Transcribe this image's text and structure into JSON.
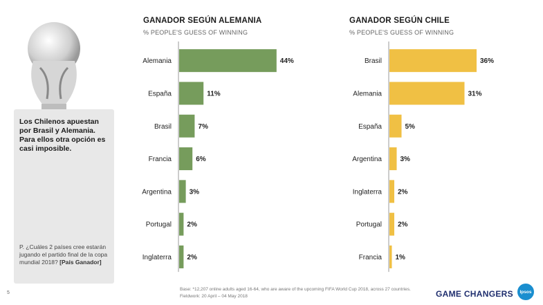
{
  "sidebar": {
    "headline": "Los Chilenos apuestan por Brasil y Alemania.  Para ellos otra opción es casi imposible.",
    "question": "P. ¿Cuáles 2 países cree estarán jugando el partido final de la copa mundial 2018?",
    "question_tag": "[País Ganador]"
  },
  "chart_data": [
    {
      "type": "bar",
      "orientation": "horizontal",
      "title": "GANADOR SEGÚN ALEMANIA",
      "subtitle": "% PEOPLE'S GUESS OF WINNING",
      "categories": [
        "Alemania",
        "España",
        "Brasil",
        "Francia",
        "Argentina",
        "Portugal",
        "Inglaterra"
      ],
      "values": [
        44,
        11,
        7,
        6,
        3,
        2,
        2
      ],
      "labels": [
        "44%",
        "11%",
        "7%",
        "6%",
        "3%",
        "2%",
        "2%"
      ],
      "unit": "%",
      "xlim": [
        0,
        50
      ],
      "color": "#769c5c"
    },
    {
      "type": "bar",
      "orientation": "horizontal",
      "title": "GANADOR SEGÚN CHILE",
      "subtitle": "% PEOPLE'S GUESS OF WINNING",
      "categories": [
        "Brasil",
        "Alemania",
        "España",
        "Argentina",
        "Inglaterra",
        "Portugal",
        "Francia"
      ],
      "values": [
        36,
        31,
        5,
        3,
        2,
        2,
        1
      ],
      "labels": [
        "36%",
        "31%",
        "5%",
        "3%",
        "2%",
        "2%",
        "1%"
      ],
      "unit": "%",
      "xlim": [
        0,
        40
      ],
      "color": "#f0c044"
    }
  ],
  "footer": {
    "page_number": "5",
    "footnote": "Base: *12,207 online adults aged 16-64, who are aware of the upcoming FIFA World Cup 2018, across 27 countries. Fieldwork:  20 April – 04 May 2018",
    "brand": "GAME CHANGERS",
    "logo_text": "Ipsos"
  }
}
